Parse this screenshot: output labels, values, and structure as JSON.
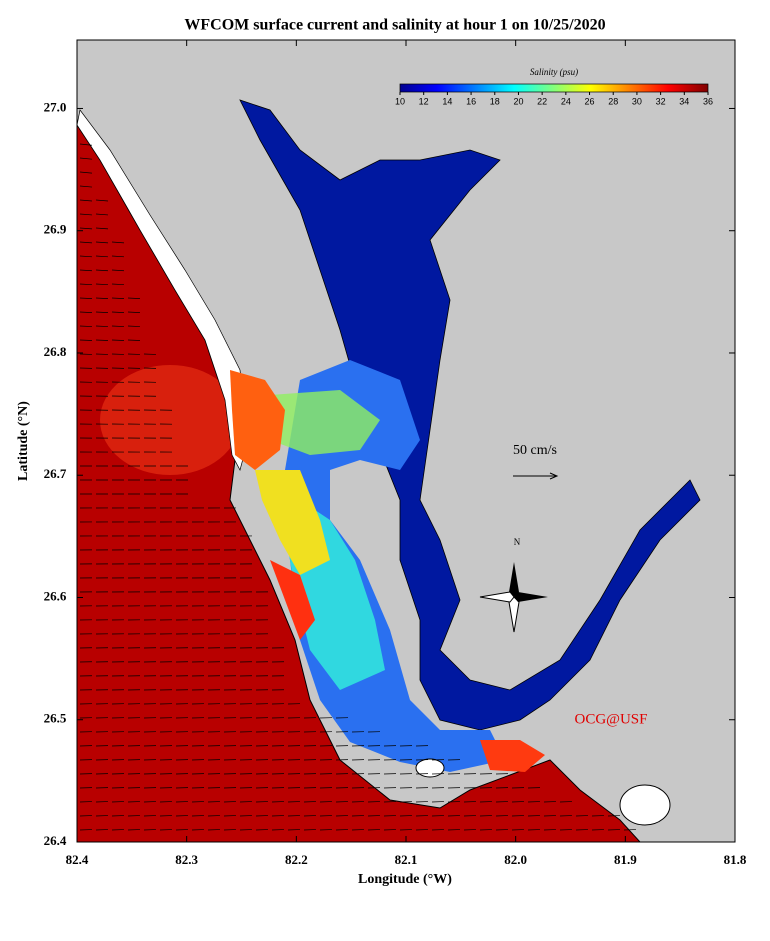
{
  "map": {
    "title": "WFCOM surface current and salinity at hour 1 on 10/25/2020",
    "x_label": "Longitude (°W)",
    "y_label": "Latitude (°N)",
    "xlim": [
      82.4,
      81.8
    ],
    "ylim": [
      26.4,
      27.056
    ],
    "xticks": [
      82.4,
      82.3,
      82.2,
      82.1,
      {
        "value": 82,
        "label": "82.0"
      },
      81.9,
      81.8
    ],
    "yticks": [
      26.4,
      26.5,
      26.6,
      26.7,
      26.8,
      26.9,
      {
        "value": 27,
        "label": "27.0"
      }
    ],
    "colorbar": {
      "label": "Salinity (psu)",
      "lim": [
        10,
        36
      ],
      "ticks": [
        10,
        12,
        14,
        16,
        18,
        20,
        22,
        24,
        26,
        28,
        30,
        32,
        34,
        36
      ]
    },
    "scale_label": "50 cm/s",
    "north_label": "N",
    "credit": "OCG@USF"
  }
}
